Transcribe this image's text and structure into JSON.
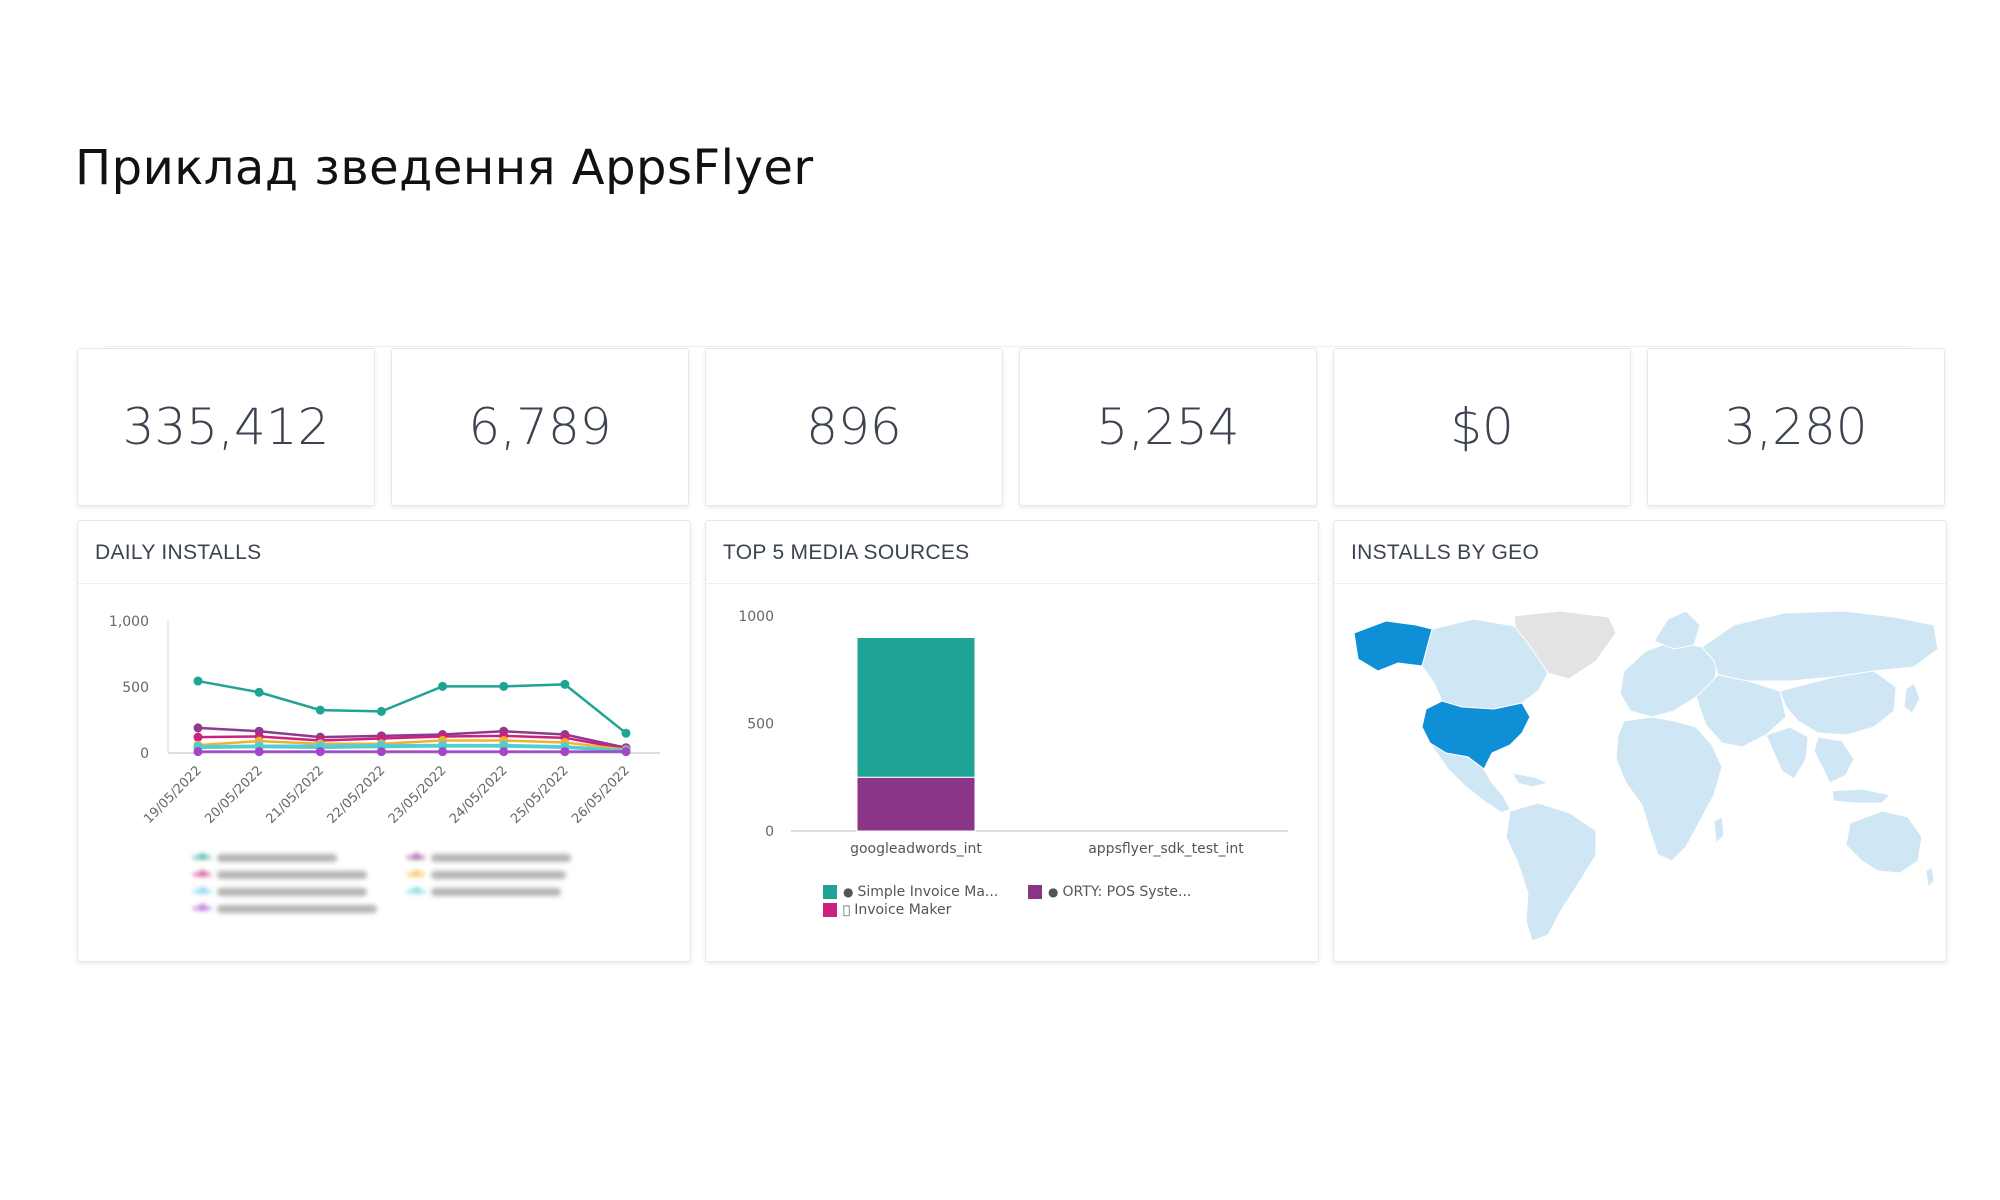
{
  "page_title": "Приклад зведення AppsFlyer",
  "stats": [
    "335,412",
    "6,789",
    "896",
    "5,254",
    "$0",
    "3,280"
  ],
  "daily_installs": {
    "title": "DAILY INSTALLS",
    "chart_data": {
      "type": "line",
      "x": [
        "19/05/2022",
        "20/05/2022",
        "21/05/2022",
        "22/05/2022",
        "23/05/2022",
        "24/05/2022",
        "25/05/2022",
        "26/05/2022"
      ],
      "ylim": [
        0,
        1000
      ],
      "yticks": [
        "1,000",
        "500",
        "0"
      ],
      "series": [
        {
          "color": "#1fa393",
          "values": [
            545,
            460,
            325,
            315,
            505,
            505,
            520,
            150
          ]
        },
        {
          "color": "#8e3a8e",
          "values": [
            190,
            165,
            120,
            130,
            140,
            165,
            140,
            40
          ]
        },
        {
          "color": "#c8237f",
          "values": [
            120,
            125,
            95,
            110,
            125,
            130,
            115,
            30
          ]
        },
        {
          "color": "#f0b429",
          "values": [
            60,
            90,
            70,
            70,
            95,
            95,
            80,
            25
          ]
        },
        {
          "color": "#5bc7f0",
          "values": [
            50,
            55,
            55,
            60,
            60,
            60,
            50,
            20
          ]
        },
        {
          "color": "#4dd0c8",
          "values": [
            40,
            45,
            40,
            45,
            50,
            50,
            40,
            15
          ]
        },
        {
          "color": "#a347c8",
          "values": [
            10,
            10,
            10,
            10,
            10,
            10,
            10,
            10
          ]
        }
      ],
      "legend_blurred": true
    },
    "legend_colors": [
      "#1fa393",
      "#c8237f",
      "#5bc7f0",
      "#a347c8",
      "#8e3a8e",
      "#f0b429",
      "#4dd0c8"
    ]
  },
  "media_sources": {
    "title": "TOP 5 MEDIA SOURCES",
    "chart_data": {
      "type": "bar",
      "stacked": true,
      "categories": [
        "googleadwords_int",
        "appsflyer_sdk_test_int"
      ],
      "ylim": [
        0,
        1000
      ],
      "yticks": [
        "1000",
        "500",
        "0"
      ],
      "series": [
        {
          "name": "Simple Invoice Ma...",
          "color": "#1fa397",
          "values": [
            650,
            0
          ]
        },
        {
          "name": "ORTY: POS Syste...",
          "color": "#8b3589",
          "values": [
            250,
            0
          ]
        },
        {
          "name": "Invoice Maker",
          "color": "#c8237f",
          "values": [
            0,
            0
          ]
        }
      ]
    },
    "legend": [
      {
        "label": "Simple Invoice Ma...",
        "color": "#1fa397",
        "os": "android-icon"
      },
      {
        "label": "ORTY: POS Syste...",
        "color": "#8b3589",
        "os": "android-icon"
      },
      {
        "label": "Invoice Maker",
        "color": "#c8237f",
        "os": "apple-icon"
      }
    ]
  },
  "geo": {
    "title": "INSTALLS BY GEO",
    "colors": {
      "highlight": "#0e8fd6",
      "base": "#cfe6f4",
      "nodata": "#e3e3e3"
    }
  }
}
